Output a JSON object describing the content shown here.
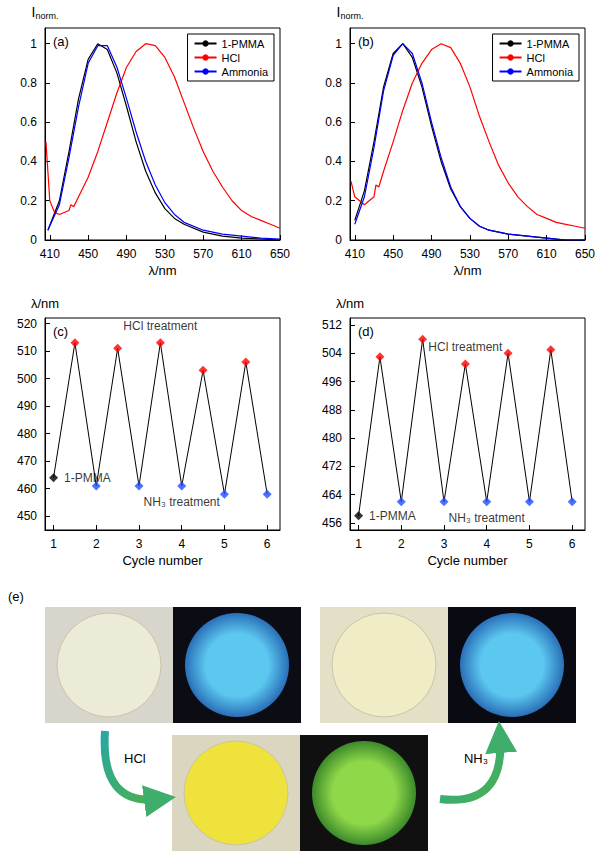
{
  "chart_data": [
    {
      "type": "line",
      "label": "(a)",
      "ylabel": "I",
      "ylabel_sub": "norm.",
      "xlabel": "λ/nm",
      "xlim": [
        405,
        650
      ],
      "xticks": [
        410,
        450,
        490,
        530,
        570,
        610,
        650
      ],
      "ylim": [
        0,
        1.08
      ],
      "yticks": [
        0,
        0.2,
        0.4,
        0.6,
        0.8,
        1
      ],
      "grid": false,
      "legend": "upper right",
      "series": [
        {
          "name": "1-PMMA",
          "color": "#000000",
          "x": [
            408,
            420,
            430,
            440,
            450,
            460,
            470,
            480,
            490,
            500,
            510,
            520,
            530,
            540,
            550,
            570,
            590,
            610,
            630,
            650
          ],
          "values": [
            0.05,
            0.2,
            0.45,
            0.72,
            0.92,
            1.0,
            0.97,
            0.85,
            0.68,
            0.5,
            0.35,
            0.24,
            0.16,
            0.11,
            0.08,
            0.04,
            0.02,
            0.01,
            0.005,
            0.0
          ]
        },
        {
          "name": "HCl",
          "color": "#ff0000",
          "x": [
            406,
            410,
            415,
            420,
            430,
            432,
            435,
            440,
            450,
            460,
            470,
            480,
            490,
            500,
            510,
            520,
            530,
            540,
            550,
            560,
            570,
            580,
            590,
            600,
            610,
            620,
            630,
            640,
            650
          ],
          "values": [
            0.5,
            0.2,
            0.14,
            0.13,
            0.15,
            0.18,
            0.17,
            0.22,
            0.32,
            0.45,
            0.6,
            0.75,
            0.88,
            0.96,
            1.0,
            0.99,
            0.93,
            0.83,
            0.7,
            0.57,
            0.45,
            0.35,
            0.27,
            0.2,
            0.15,
            0.12,
            0.1,
            0.08,
            0.06
          ]
        },
        {
          "name": "Ammonia",
          "color": "#0000ff",
          "x": [
            408,
            420,
            430,
            440,
            450,
            460,
            470,
            480,
            490,
            500,
            510,
            520,
            530,
            540,
            550,
            570,
            590,
            610,
            630,
            650
          ],
          "values": [
            0.05,
            0.18,
            0.42,
            0.68,
            0.9,
            0.99,
            0.99,
            0.88,
            0.72,
            0.55,
            0.4,
            0.28,
            0.19,
            0.13,
            0.09,
            0.05,
            0.03,
            0.02,
            0.01,
            0.005
          ]
        }
      ]
    },
    {
      "type": "line",
      "label": "(b)",
      "ylabel": "I",
      "ylabel_sub": "norm.",
      "xlabel": "λ/nm",
      "xlim": [
        405,
        650
      ],
      "xticks": [
        410,
        450,
        490,
        530,
        570,
        610,
        650
      ],
      "ylim": [
        0,
        1.08
      ],
      "yticks": [
        0,
        0.2,
        0.4,
        0.6,
        0.8,
        1
      ],
      "grid": false,
      "legend": "upper right",
      "series": [
        {
          "name": "1-PMMA",
          "color": "#000000",
          "x": [
            410,
            420,
            430,
            440,
            450,
            460,
            470,
            480,
            490,
            500,
            510,
            520,
            530,
            540,
            550,
            570,
            590,
            610,
            630,
            650
          ],
          "values": [
            0.1,
            0.25,
            0.5,
            0.78,
            0.95,
            1.0,
            0.93,
            0.78,
            0.58,
            0.4,
            0.26,
            0.17,
            0.11,
            0.07,
            0.05,
            0.03,
            0.02,
            0.01,
            0.0,
            0.0
          ]
        },
        {
          "name": "HCl",
          "color": "#ff0000",
          "x": [
            406,
            410,
            420,
            430,
            432,
            435,
            440,
            450,
            460,
            470,
            480,
            490,
            500,
            510,
            520,
            530,
            540,
            550,
            560,
            570,
            580,
            590,
            600,
            610,
            620,
            630,
            640,
            650
          ],
          "values": [
            0.3,
            0.22,
            0.18,
            0.22,
            0.28,
            0.27,
            0.35,
            0.5,
            0.66,
            0.8,
            0.9,
            0.97,
            1.0,
            0.98,
            0.9,
            0.78,
            0.63,
            0.5,
            0.38,
            0.29,
            0.22,
            0.17,
            0.13,
            0.11,
            0.09,
            0.08,
            0.07,
            0.06
          ]
        },
        {
          "name": "Ammonia",
          "color": "#0000ff",
          "x": [
            410,
            420,
            430,
            440,
            450,
            460,
            470,
            480,
            490,
            500,
            510,
            520,
            530,
            540,
            550,
            570,
            590,
            610,
            630,
            650
          ],
          "values": [
            0.08,
            0.22,
            0.47,
            0.76,
            0.94,
            1.0,
            0.95,
            0.8,
            0.6,
            0.42,
            0.27,
            0.17,
            0.11,
            0.07,
            0.05,
            0.03,
            0.02,
            0.01,
            0.0,
            0.0
          ]
        }
      ]
    },
    {
      "type": "scatter",
      "label": "(c)",
      "ylabel": "λ/nm",
      "xlabel": "Cycle number",
      "xlim": [
        0.8,
        6.3
      ],
      "xticks": [
        1,
        2,
        3,
        4,
        5,
        6
      ],
      "ylim": [
        445,
        522
      ],
      "yticks": [
        450,
        460,
        470,
        480,
        490,
        500,
        510,
        520
      ],
      "grid": false,
      "marker": "diamond",
      "line_style": "solid",
      "series": [
        {
          "name": "1-PMMA",
          "color": "#000000",
          "x": [
            1
          ],
          "values": [
            464
          ]
        },
        {
          "name": "HCl treatment",
          "color": "#ff0000",
          "x": [
            1.5,
            2.5,
            3.5,
            4.5,
            5.5
          ],
          "values": [
            513,
            511,
            513,
            503,
            506
          ]
        },
        {
          "name": "NH₃ treatment",
          "color": "#1f4fff",
          "x": [
            2,
            3,
            4,
            5,
            6
          ],
          "values": [
            461,
            461,
            461,
            458,
            458
          ]
        }
      ]
    },
    {
      "type": "scatter",
      "label": "(d)",
      "ylabel": "λ/nm",
      "xlabel": "Cycle number",
      "xlim": [
        0.8,
        6.3
      ],
      "xticks": [
        1,
        2,
        3,
        4,
        5,
        6
      ],
      "ylim": [
        454,
        514
      ],
      "yticks": [
        456,
        464,
        472,
        480,
        488,
        496,
        504,
        512
      ],
      "grid": false,
      "marker": "diamond",
      "line_style": "solid",
      "series": [
        {
          "name": "1-PMMA",
          "color": "#000000",
          "x": [
            1
          ],
          "values": [
            458
          ]
        },
        {
          "name": "HCl treatment",
          "color": "#ff0000",
          "x": [
            1.5,
            2.5,
            3.5,
            4.5,
            5.5
          ],
          "values": [
            503,
            508,
            501,
            504,
            505
          ]
        },
        {
          "name": "NH₃ treatment",
          "color": "#1f4fff",
          "x": [
            2,
            3,
            4,
            5,
            6
          ],
          "values": [
            462,
            462,
            462,
            462,
            462
          ]
        }
      ]
    }
  ],
  "figure_e": {
    "label": "(e)",
    "arrows": [
      "HCl",
      "NH₃"
    ]
  }
}
